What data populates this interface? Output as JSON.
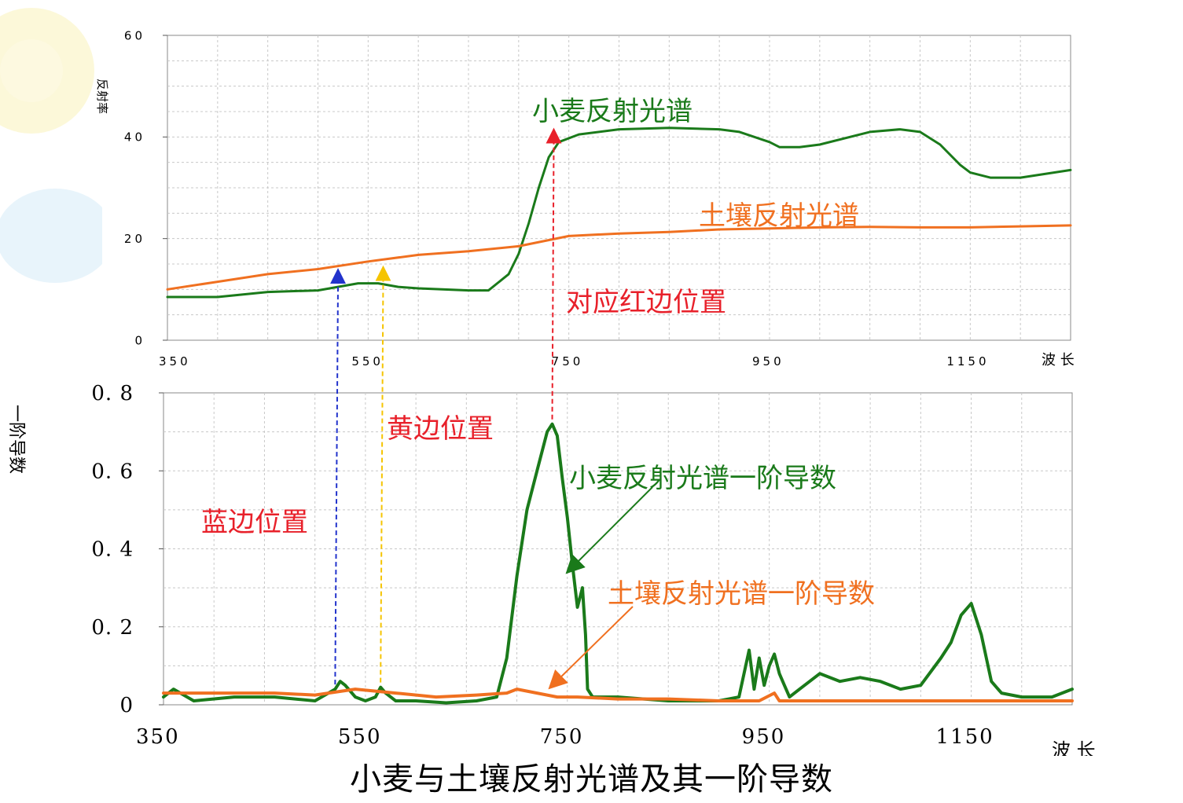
{
  "title": "小麦与土壤反射光谱及其一阶导数",
  "colors": {
    "wheat": "#1a7a1a",
    "soil": "#f07020",
    "annotation_red": "#e8202a",
    "blue_arrow": "#2233cc",
    "yellow_arrow": "#f5c400",
    "red_arrow": "#e8202a"
  },
  "chart_data": [
    {
      "type": "line",
      "ylabel": "反射率",
      "xlabel": "波 长",
      "xlim": [
        350,
        1250
      ],
      "ylim": [
        0,
        60
      ],
      "x_ticks": [
        "350",
        "550",
        "750",
        "950",
        "1150"
      ],
      "y_ticks": [
        "0",
        "20",
        "40",
        "60"
      ],
      "grid": true,
      "series": [
        {
          "name": "小麦反射光谱",
          "x": [
            350,
            400,
            450,
            500,
            520,
            540,
            560,
            580,
            600,
            650,
            670,
            690,
            700,
            710,
            720,
            730,
            740,
            760,
            800,
            850,
            900,
            920,
            950,
            960,
            980,
            1000,
            1050,
            1080,
            1100,
            1120,
            1140,
            1150,
            1170,
            1200,
            1250
          ],
          "y": [
            8.5,
            8.5,
            9.5,
            9.8,
            10.5,
            11.2,
            11.2,
            10.5,
            10.2,
            9.8,
            9.8,
            13,
            17,
            23,
            30,
            36,
            39,
            40.5,
            41.5,
            41.8,
            41.5,
            41,
            39,
            38,
            38,
            38.5,
            41,
            41.5,
            41,
            38.5,
            34.5,
            33,
            32,
            32,
            33.5
          ]
        },
        {
          "name": "土壤反射光谱",
          "x": [
            350,
            400,
            450,
            500,
            550,
            600,
            650,
            700,
            750,
            800,
            850,
            900,
            950,
            1000,
            1050,
            1100,
            1150,
            1200,
            1250
          ],
          "y": [
            10,
            11.5,
            13,
            14,
            15.5,
            16.8,
            17.5,
            18.5,
            20.5,
            21,
            21.3,
            21.8,
            22,
            22.2,
            22.3,
            22.2,
            22.2,
            22.4,
            22.6
          ]
        }
      ]
    },
    {
      "type": "line",
      "ylabel": "一阶导数",
      "xlabel": "波 长",
      "xlim": [
        350,
        1250
      ],
      "ylim": [
        0,
        0.8
      ],
      "x_ticks": [
        "350",
        "550",
        "750",
        "950",
        "1150"
      ],
      "y_ticks": [
        "0",
        "0. 2",
        "0. 4",
        "0. 6",
        "0. 8"
      ],
      "grid": true,
      "series": [
        {
          "name": "小麦反射光谱一阶导数",
          "x": [
            350,
            360,
            380,
            420,
            460,
            500,
            520,
            525,
            530,
            540,
            550,
            560,
            565,
            570,
            580,
            600,
            630,
            660,
            680,
            690,
            700,
            710,
            720,
            730,
            735,
            740,
            745,
            750,
            755,
            760,
            765,
            768,
            770,
            775,
            780,
            800,
            850,
            900,
            920,
            930,
            935,
            940,
            945,
            950,
            955,
            960,
            965,
            970,
            980,
            1000,
            1020,
            1040,
            1060,
            1080,
            1100,
            1120,
            1130,
            1140,
            1150,
            1160,
            1165,
            1170,
            1180,
            1200,
            1230,
            1250
          ],
          "y": [
            0.02,
            0.04,
            0.01,
            0.02,
            0.02,
            0.01,
            0.04,
            0.06,
            0.05,
            0.02,
            0.01,
            0.02,
            0.045,
            0.03,
            0.01,
            0.01,
            0.005,
            0.01,
            0.02,
            0.12,
            0.33,
            0.5,
            0.6,
            0.7,
            0.72,
            0.69,
            0.58,
            0.48,
            0.36,
            0.25,
            0.3,
            0.18,
            0.04,
            0.02,
            0.02,
            0.02,
            0.01,
            0.01,
            0.02,
            0.14,
            0.04,
            0.12,
            0.05,
            0.1,
            0.13,
            0.08,
            0.05,
            0.02,
            0.04,
            0.08,
            0.06,
            0.07,
            0.06,
            0.04,
            0.05,
            0.12,
            0.16,
            0.23,
            0.26,
            0.18,
            0.12,
            0.06,
            0.03,
            0.02,
            0.02,
            0.04
          ]
        },
        {
          "name": "土壤反射光谱一阶导数",
          "x": [
            350,
            380,
            420,
            460,
            500,
            540,
            580,
            620,
            660,
            690,
            700,
            720,
            740,
            760,
            800,
            850,
            900,
            940,
            955,
            960,
            1000,
            1050,
            1100,
            1150,
            1200,
            1250
          ],
          "y": [
            0.03,
            0.03,
            0.03,
            0.03,
            0.025,
            0.04,
            0.03,
            0.02,
            0.025,
            0.03,
            0.04,
            0.03,
            0.02,
            0.02,
            0.015,
            0.015,
            0.01,
            0.01,
            0.03,
            0.01,
            0.01,
            0.01,
            0.01,
            0.01,
            0.01,
            0.01
          ]
        }
      ]
    }
  ],
  "annotations": {
    "wheat_spectrum": "小麦反射光谱",
    "soil_spectrum": "土壤反射光谱",
    "red_edge": "对应红边位置",
    "yellow_edge": "黄边位置",
    "blue_edge": "蓝边位置",
    "wheat_derivative": "小麦反射光谱一阶导数",
    "soil_derivative": "土壤反射光谱一阶导数"
  },
  "markers": {
    "blue_edge_wavelength": 520,
    "yellow_edge_wavelength": 565,
    "red_edge_wavelength": 735
  }
}
